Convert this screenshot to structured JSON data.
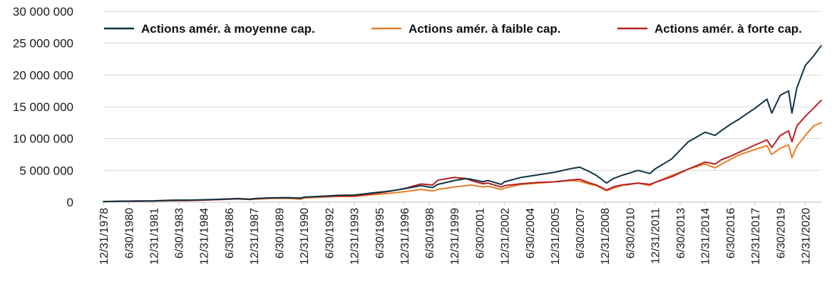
{
  "chart_data": {
    "type": "line",
    "title": "",
    "xlabel": "",
    "ylabel": "",
    "ylim": [
      0,
      30000000
    ],
    "y_ticks": [
      0,
      5000000,
      10000000,
      15000000,
      20000000,
      25000000,
      30000000
    ],
    "y_tick_labels": [
      "0",
      "5 000 000",
      "10 000 000",
      "15 000 000",
      "20 000 000",
      "25 000 000",
      "30 000 000"
    ],
    "x_range": [
      1978.99,
      2022.0
    ],
    "x_tick_labels": [
      "12/31/1978",
      "6/30/1980",
      "12/31/1981",
      "6/30/1983",
      "12/31/1984",
      "6/30/1986",
      "12/31/1987",
      "6/30/1989",
      "12/31/1990",
      "6/30/1992",
      "12/31/1993",
      "6/30/1995",
      "12/31/1996",
      "6/30/1998",
      "12/31/1999",
      "6/30/2001",
      "12/31/2002",
      "6/30/2004",
      "12/31/2005",
      "6/30/2007",
      "12/31/2008",
      "6/30/2010",
      "12/31/2011",
      "6/30/2013",
      "12/31/2014",
      "6/30/2016",
      "12/31/2017",
      "6/30/2019",
      "12/31/2020"
    ],
    "x_ticks": [
      1978.99,
      1980.5,
      1981.99,
      1983.5,
      1984.99,
      1986.5,
      1987.99,
      1989.5,
      1990.99,
      1992.5,
      1993.99,
      1995.5,
      1996.99,
      1998.5,
      1999.99,
      2001.5,
      2002.99,
      2004.5,
      2005.99,
      2007.5,
      2008.99,
      2010.5,
      2011.99,
      2013.5,
      2014.99,
      2016.5,
      2017.99,
      2019.5,
      2020.99
    ],
    "grid": "horizontal",
    "legend_position": "top",
    "series": [
      {
        "name": "Actions amér. à moyenne cap.",
        "color": "#0f3443",
        "x": [
          1979.0,
          1980.0,
          1981.0,
          1982.0,
          1983.0,
          1984.0,
          1985.0,
          1986.0,
          1987.0,
          1987.8,
          1988.0,
          1989.0,
          1990.0,
          1990.8,
          1991.0,
          1992.0,
          1993.0,
          1994.0,
          1995.0,
          1996.0,
          1997.0,
          1998.0,
          1998.7,
          1999.0,
          2000.0,
          2000.7,
          2001.0,
          2001.7,
          2002.0,
          2002.8,
          2003.0,
          2004.0,
          2005.0,
          2006.0,
          2007.0,
          2007.5,
          2008.0,
          2008.5,
          2009.1,
          2009.5,
          2010.0,
          2011.0,
          2011.7,
          2012.0,
          2013.0,
          2014.0,
          2015.0,
          2015.6,
          2016.0,
          2016.5,
          2017.0,
          2018.0,
          2018.7,
          2018.99,
          2019.5,
          2020.0,
          2020.2,
          2020.5,
          2021.0,
          2021.5,
          2021.95
        ],
        "values": [
          100000,
          160000,
          190000,
          210000,
          300000,
          330000,
          380000,
          460000,
          570000,
          480000,
          560000,
          680000,
          720000,
          620000,
          780000,
          930000,
          1080000,
          1120000,
          1420000,
          1700000,
          2100000,
          2600000,
          2300000,
          2800000,
          3400000,
          3700000,
          3600000,
          3200000,
          3400000,
          2800000,
          3200000,
          3900000,
          4300000,
          4700000,
          5300000,
          5500000,
          4900000,
          4200000,
          3000000,
          3700000,
          4200000,
          5000000,
          4500000,
          5200000,
          6800000,
          9500000,
          11000000,
          10500000,
          11300000,
          12200000,
          13000000,
          14800000,
          16200000,
          14000000,
          16800000,
          17500000,
          14000000,
          18000000,
          21500000,
          23000000,
          24600000
        ]
      },
      {
        "name": "Actions amér. à faible cap.",
        "color": "#e87d25",
        "x": [
          1979.0,
          1980.0,
          1981.0,
          1982.0,
          1983.0,
          1984.0,
          1985.0,
          1986.0,
          1987.0,
          1987.8,
          1988.0,
          1989.0,
          1990.0,
          1990.8,
          1991.0,
          1992.0,
          1993.0,
          1994.0,
          1995.0,
          1996.0,
          1997.0,
          1998.0,
          1998.7,
          1999.0,
          2000.0,
          2000.7,
          2001.0,
          2001.7,
          2002.0,
          2002.8,
          2003.0,
          2004.0,
          2005.0,
          2006.0,
          2007.0,
          2007.5,
          2008.0,
          2008.5,
          2009.1,
          2009.5,
          2010.0,
          2011.0,
          2011.7,
          2012.0,
          2013.0,
          2014.0,
          2015.0,
          2015.6,
          2016.0,
          2016.5,
          2017.0,
          2018.0,
          2018.7,
          2018.99,
          2019.5,
          2020.0,
          2020.2,
          2020.5,
          2021.0,
          2021.5,
          2021.95
        ],
        "values": [
          100000,
          150000,
          180000,
          200000,
          290000,
          310000,
          360000,
          430000,
          530000,
          420000,
          480000,
          580000,
          600000,
          480000,
          650000,
          780000,
          900000,
          900000,
          1150000,
          1350000,
          1650000,
          2000000,
          1750000,
          2000000,
          2400000,
          2600000,
          2700000,
          2400000,
          2500000,
          2000000,
          2200000,
          2800000,
          3000000,
          3200000,
          3400000,
          3300000,
          2900000,
          2600000,
          1800000,
          2200000,
          2600000,
          3000000,
          2600000,
          3100000,
          4200000,
          5200000,
          6000000,
          5400000,
          6000000,
          6700000,
          7400000,
          8300000,
          8900000,
          7500000,
          8500000,
          9000000,
          7000000,
          8800000,
          10500000,
          12000000,
          12500000
        ]
      },
      {
        "name": "Actions amér. à forte cap.",
        "color": "#b52025",
        "x": [
          1979.0,
          1980.0,
          1981.0,
          1982.0,
          1983.0,
          1984.0,
          1985.0,
          1986.0,
          1987.0,
          1987.8,
          1988.0,
          1989.0,
          1990.0,
          1990.8,
          1991.0,
          1992.0,
          1993.0,
          1994.0,
          1995.0,
          1996.0,
          1997.0,
          1998.0,
          1998.7,
          1999.0,
          2000.0,
          2000.7,
          2001.0,
          2001.7,
          2002.0,
          2002.8,
          2003.0,
          2004.0,
          2005.0,
          2006.0,
          2007.0,
          2007.5,
          2008.0,
          2008.5,
          2009.1,
          2009.5,
          2010.0,
          2011.0,
          2011.7,
          2012.0,
          2013.0,
          2014.0,
          2015.0,
          2015.6,
          2016.0,
          2016.5,
          2017.0,
          2018.0,
          2018.7,
          2018.99,
          2019.5,
          2020.0,
          2020.2,
          2020.5,
          2021.0,
          2021.5,
          2021.95
        ],
        "values": [
          100000,
          130000,
          150000,
          180000,
          240000,
          260000,
          330000,
          420000,
          520000,
          430000,
          520000,
          650000,
          700000,
          640000,
          780000,
          880000,
          980000,
          1000000,
          1300000,
          1650000,
          2150000,
          2850000,
          2700000,
          3450000,
          3900000,
          3700000,
          3400000,
          2900000,
          3000000,
          2400000,
          2600000,
          2900000,
          3100000,
          3200000,
          3500000,
          3600000,
          3100000,
          2700000,
          1900000,
          2400000,
          2700000,
          3000000,
          2800000,
          3100000,
          4000000,
          5200000,
          6300000,
          6000000,
          6700000,
          7200000,
          7800000,
          9000000,
          9800000,
          8600000,
          10500000,
          11200000,
          9500000,
          12000000,
          13500000,
          14800000,
          16000000
        ]
      }
    ]
  }
}
